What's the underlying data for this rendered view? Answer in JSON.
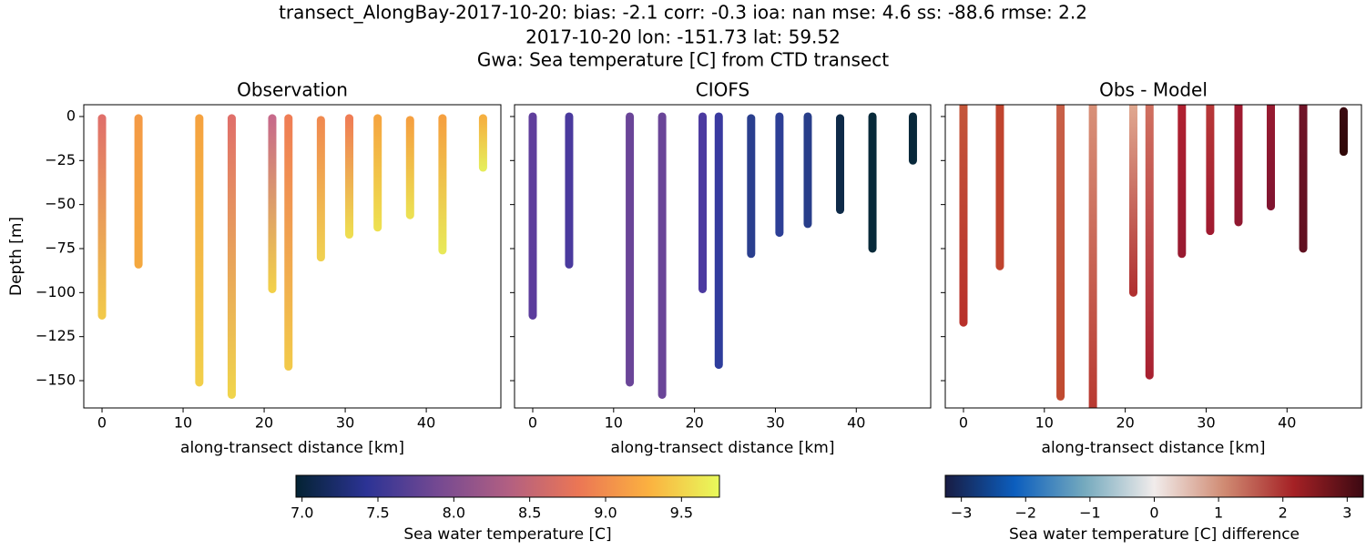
{
  "title": [
    "transect_AlongBay-2017-10-20: bias: -2.1  corr: -0.3  ioa: nan  mse: 4.6  ss: -88.6  rmse: 2.2",
    "2017-10-20 lon: -151.73 lat: 59.52",
    "Gwa: Sea temperature [C] from CTD transect"
  ],
  "chart_data": [
    {
      "type": "profile",
      "title": "Observation",
      "xlabel": "along-transect distance [km]",
      "ylabel": "Depth [m]",
      "show_ytick_labels": true,
      "x": [
        0,
        4.5,
        12,
        16,
        21,
        23,
        27,
        30.5,
        34,
        38,
        42,
        47
      ],
      "y_top": [
        -1,
        -1,
        -1,
        -1,
        -1,
        -1,
        -2,
        -1,
        -1,
        -2,
        -1,
        -1
      ],
      "y_bottom": [
        -113,
        -84,
        -151,
        -158,
        -98,
        -142,
        -80,
        -67,
        -63,
        -56,
        -76,
        -29
      ],
      "top_colors": [
        "#e0706a",
        "#f49a45",
        "#f5a23f",
        "#e0706a",
        "#c76a8a",
        "#ef7d55",
        "#f08a50",
        "#ef7d55",
        "#f5a540",
        "#f5a040",
        "#f5a040",
        "#f5b040"
      ],
      "bottom_colors": [
        "#f2c94a",
        "#f4a83f",
        "#f2cf4a",
        "#f0d44c",
        "#f2d04a",
        "#f2c94a",
        "#f0d050",
        "#eedd50",
        "#eee050",
        "#ece052",
        "#e8e858",
        "#e6ec5a"
      ],
      "xlim": [
        -2.25,
        49.2
      ],
      "ylim": [
        -165.5,
        6.7
      ],
      "xticks": [
        0,
        10,
        20,
        30,
        40
      ],
      "yticks": [
        0,
        {
          "value": -25,
          "label": "−25"
        },
        {
          "value": -50,
          "label": "−50"
        },
        {
          "value": -75,
          "label": "−75"
        },
        {
          "value": -100,
          "label": "−100"
        },
        {
          "value": -125,
          "label": "−125"
        },
        {
          "value": -150,
          "label": "−150"
        }
      ]
    },
    {
      "type": "profile",
      "title": "CIOFS",
      "xlabel": "along-transect distance [km]",
      "show_ytick_labels": false,
      "x": [
        0,
        4.5,
        12,
        16,
        21,
        23,
        27,
        30.5,
        34,
        38,
        42,
        47
      ],
      "y_top": [
        0,
        0,
        0,
        0,
        0,
        0,
        -1,
        0,
        0,
        -1,
        0,
        0
      ],
      "y_bottom": [
        -113,
        -84,
        -151,
        -158,
        -98,
        -141,
        -78,
        -66,
        -61,
        -53,
        -75,
        -25
      ],
      "top_colors": [
        "#603e9c",
        "#4a3a9e",
        "#6a4598",
        "#6a4598",
        "#4c3aa0",
        "#3a3aa0",
        "#2a3f8e",
        "#2d3f96",
        "#283e8a",
        "#0e2a48",
        "#082a3a",
        "#08283a"
      ],
      "bottom_colors": [
        "#5b3c9c",
        "#4a3a9e",
        "#6a4598",
        "#6a4598",
        "#4c3aa0",
        "#2e3d9c",
        "#2a3f8e",
        "#2d3f96",
        "#283e8a",
        "#0e2a48",
        "#082a3a",
        "#08283a"
      ],
      "xlim": [
        -2.25,
        49.2
      ],
      "ylim": [
        -165.5,
        6.7
      ],
      "xticks": [
        0,
        10,
        20,
        30,
        40
      ],
      "yticks": [
        0,
        -25,
        -50,
        -75,
        -100,
        -125,
        -150
      ]
    },
    {
      "type": "profile",
      "title": "Obs - Model",
      "xlabel": "along-transect distance [km]",
      "show_ytick_labels": false,
      "x": [
        0,
        4.5,
        12,
        16,
        21,
        23,
        27,
        30.5,
        34,
        38,
        42,
        47
      ],
      "y_top": [
        6,
        6,
        6,
        6,
        6,
        6,
        6,
        6,
        6,
        6,
        6,
        3
      ],
      "y_bottom": [
        -117,
        -85,
        -159,
        -168,
        -100,
        -147,
        -78,
        -65,
        -60,
        -51,
        -75,
        -20
      ],
      "top_colors": [
        "#c4563a",
        "#c0442e",
        "#c86048",
        "#d89078",
        "#e0a890",
        "#d07060",
        "#b02030",
        "#b83838",
        "#a01a30",
        "#981a30",
        "#701428",
        "#3a0a10"
      ],
      "bottom_colors": [
        "#b8302a",
        "#c0442e",
        "#c04a30",
        "#b83830",
        "#b03030",
        "#a82030",
        "#981a30",
        "#a01a30",
        "#901830",
        "#801430",
        "#601020",
        "#300808"
      ],
      "xlim": [
        -2.25,
        49.2
      ],
      "ylim": [
        -165.5,
        6.7
      ],
      "xticks": [
        0,
        10,
        20,
        30,
        40
      ],
      "yticks": [
        0,
        -25,
        -50,
        -75,
        -100,
        -125,
        -150
      ]
    }
  ],
  "colorbars": [
    {
      "label": "Sea water temperature [C]",
      "clim": [
        6.96,
        9.75
      ],
      "colors": [
        "#042333",
        "#2c3395",
        "#744992",
        "#b15f82",
        "#eb7655",
        "#fbb140",
        "#e8fa5b"
      ],
      "ticks": [
        {
          "value": 7.0,
          "label": "7.0"
        },
        7.5,
        {
          "value": 8.0,
          "label": "8.0"
        },
        8.5,
        {
          "value": 9.0,
          "label": "9.0"
        },
        9.5
      ]
    },
    {
      "label": "Sea water temperature [C] difference",
      "clim": [
        -3.25,
        3.25
      ],
      "colors": [
        "#181c43",
        "#0c5ebe",
        "#75aabe",
        "#f1eceb",
        "#d08b73",
        "#a52125",
        "#3c0912"
      ],
      "ticks": [
        {
          "value": -3,
          "label": "−3"
        },
        {
          "value": -2,
          "label": "−2"
        },
        {
          "value": -1,
          "label": "−1"
        },
        0,
        1,
        2,
        3
      ]
    }
  ]
}
